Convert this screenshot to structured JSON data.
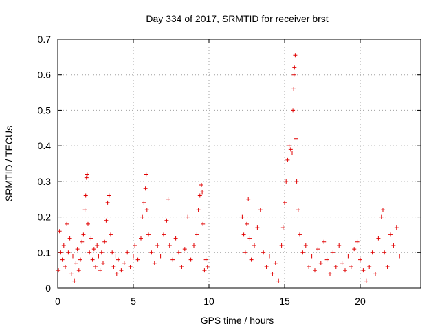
{
  "chart_data": {
    "type": "scatter",
    "title": "Day 334 of 2017, SRMTID for receiver brst",
    "xlabel": "GPS time / hours",
    "ylabel": "SRMTID / TECUs",
    "xlim": [
      0,
      24
    ],
    "ylim": [
      0,
      0.7
    ],
    "x_ticks": [
      0,
      5,
      10,
      15,
      20
    ],
    "y_ticks": [
      0,
      0.1,
      0.2,
      0.3,
      0.4,
      0.5,
      0.6,
      0.7
    ],
    "x_tick_labels": [
      "0",
      "5",
      "10",
      "15",
      "20"
    ],
    "y_tick_labels": [
      "0",
      "0.1",
      "0.2",
      "0.3",
      "0.4",
      "0.5",
      "0.6",
      "0.7"
    ],
    "grid": true,
    "marker": "+",
    "color": "#e00000",
    "series": [
      {
        "name": "SRMTID",
        "points": [
          [
            0.05,
            0.05
          ],
          [
            0.12,
            0.16
          ],
          [
            0.2,
            0.1
          ],
          [
            0.3,
            0.08
          ],
          [
            0.4,
            0.12
          ],
          [
            0.5,
            0.06
          ],
          [
            0.6,
            0.18
          ],
          [
            0.7,
            0.1
          ],
          [
            0.8,
            0.14
          ],
          [
            0.9,
            0.04
          ],
          [
            1.0,
            0.09
          ],
          [
            1.1,
            0.02
          ],
          [
            1.2,
            0.07
          ],
          [
            1.3,
            0.11
          ],
          [
            1.4,
            0.05
          ],
          [
            1.5,
            0.08
          ],
          [
            1.6,
            0.13
          ],
          [
            1.7,
            0.15
          ],
          [
            1.8,
            0.22
          ],
          [
            1.85,
            0.26
          ],
          [
            1.9,
            0.31
          ],
          [
            1.95,
            0.32
          ],
          [
            2.0,
            0.18
          ],
          [
            2.1,
            0.1
          ],
          [
            2.2,
            0.14
          ],
          [
            2.3,
            0.08
          ],
          [
            2.4,
            0.11
          ],
          [
            2.5,
            0.06
          ],
          [
            2.6,
            0.12
          ],
          [
            2.7,
            0.09
          ],
          [
            2.8,
            0.05
          ],
          [
            2.9,
            0.1
          ],
          [
            3.0,
            0.07
          ],
          [
            3.1,
            0.13
          ],
          [
            3.2,
            0.19
          ],
          [
            3.3,
            0.24
          ],
          [
            3.4,
            0.26
          ],
          [
            3.5,
            0.15
          ],
          [
            3.6,
            0.1
          ],
          [
            3.7,
            0.06
          ],
          [
            3.8,
            0.09
          ],
          [
            3.9,
            0.04
          ],
          [
            4.0,
            0.08
          ],
          [
            4.2,
            0.05
          ],
          [
            4.4,
            0.07
          ],
          [
            4.6,
            0.1
          ],
          [
            4.8,
            0.06
          ],
          [
            5.0,
            0.09
          ],
          [
            5.1,
            0.12
          ],
          [
            5.3,
            0.08
          ],
          [
            5.5,
            0.14
          ],
          [
            5.6,
            0.2
          ],
          [
            5.7,
            0.24
          ],
          [
            5.8,
            0.28
          ],
          [
            5.85,
            0.32
          ],
          [
            5.9,
            0.22
          ],
          [
            6.0,
            0.15
          ],
          [
            6.2,
            0.1
          ],
          [
            6.4,
            0.07
          ],
          [
            6.6,
            0.12
          ],
          [
            6.8,
            0.09
          ],
          [
            7.0,
            0.15
          ],
          [
            7.2,
            0.19
          ],
          [
            7.3,
            0.25
          ],
          [
            7.4,
            0.12
          ],
          [
            7.6,
            0.08
          ],
          [
            7.8,
            0.14
          ],
          [
            8.0,
            0.1
          ],
          [
            8.2,
            0.06
          ],
          [
            8.4,
            0.11
          ],
          [
            8.6,
            0.2
          ],
          [
            8.8,
            0.08
          ],
          [
            9.0,
            0.12
          ],
          [
            9.2,
            0.15
          ],
          [
            9.3,
            0.22
          ],
          [
            9.4,
            0.26
          ],
          [
            9.5,
            0.29
          ],
          [
            9.55,
            0.27
          ],
          [
            9.6,
            0.18
          ],
          [
            9.7,
            0.05
          ],
          [
            9.8,
            0.08
          ],
          [
            9.9,
            0.06
          ],
          [
            12.2,
            0.2
          ],
          [
            12.3,
            0.15
          ],
          [
            12.4,
            0.1
          ],
          [
            12.5,
            0.18
          ],
          [
            12.6,
            0.25
          ],
          [
            12.7,
            0.14
          ],
          [
            12.8,
            0.08
          ],
          [
            13.0,
            0.12
          ],
          [
            13.2,
            0.17
          ],
          [
            13.4,
            0.22
          ],
          [
            13.6,
            0.1
          ],
          [
            13.8,
            0.06
          ],
          [
            14.0,
            0.09
          ],
          [
            14.2,
            0.04
          ],
          [
            14.4,
            0.07
          ],
          [
            14.6,
            0.02
          ],
          [
            14.8,
            0.12
          ],
          [
            14.9,
            0.17
          ],
          [
            15.0,
            0.24
          ],
          [
            15.1,
            0.3
          ],
          [
            15.2,
            0.36
          ],
          [
            15.3,
            0.4
          ],
          [
            15.4,
            0.39
          ],
          [
            15.5,
            0.38
          ],
          [
            15.55,
            0.5
          ],
          [
            15.6,
            0.56
          ],
          [
            15.62,
            0.6
          ],
          [
            15.65,
            0.62
          ],
          [
            15.7,
            0.655
          ],
          [
            15.75,
            0.42
          ],
          [
            15.8,
            0.3
          ],
          [
            15.9,
            0.22
          ],
          [
            16.0,
            0.15
          ],
          [
            16.2,
            0.1
          ],
          [
            16.4,
            0.12
          ],
          [
            16.6,
            0.06
          ],
          [
            16.8,
            0.09
          ],
          [
            17.0,
            0.05
          ],
          [
            17.2,
            0.11
          ],
          [
            17.4,
            0.07
          ],
          [
            17.6,
            0.13
          ],
          [
            17.8,
            0.08
          ],
          [
            18.0,
            0.04
          ],
          [
            18.2,
            0.1
          ],
          [
            18.4,
            0.06
          ],
          [
            18.6,
            0.12
          ],
          [
            18.8,
            0.07
          ],
          [
            19.0,
            0.05
          ],
          [
            19.2,
            0.09
          ],
          [
            19.4,
            0.06
          ],
          [
            19.6,
            0.11
          ],
          [
            19.8,
            0.13
          ],
          [
            20.0,
            0.08
          ],
          [
            20.2,
            0.05
          ],
          [
            20.4,
            0.02
          ],
          [
            20.6,
            0.06
          ],
          [
            20.8,
            0.1
          ],
          [
            21.0,
            0.04
          ],
          [
            21.2,
            0.14
          ],
          [
            21.4,
            0.2
          ],
          [
            21.5,
            0.22
          ],
          [
            21.6,
            0.1
          ],
          [
            21.8,
            0.06
          ],
          [
            22.0,
            0.15
          ],
          [
            22.2,
            0.12
          ],
          [
            22.4,
            0.17
          ],
          [
            22.6,
            0.09
          ]
        ]
      }
    ]
  }
}
